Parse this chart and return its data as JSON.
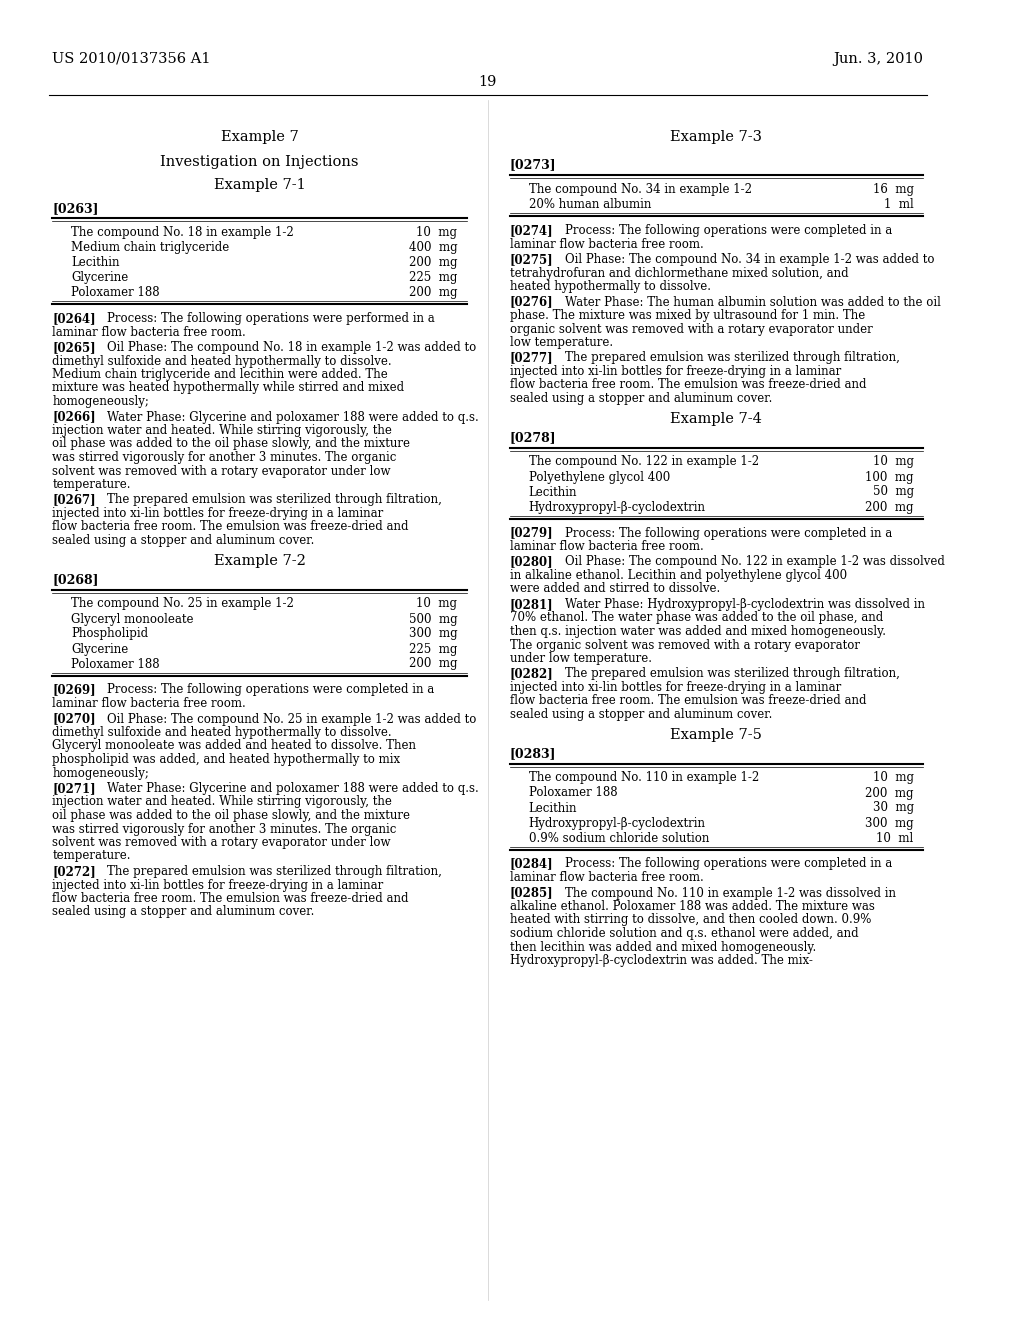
{
  "bg_color": "#ffffff",
  "header_left": "US 2010/0137356 A1",
  "header_right": "Jun. 3, 2010",
  "page_num": "19",
  "left_col": {
    "example_title": "Example 7",
    "subtitle": "Investigation on Injections",
    "sub_example": "Example 7-1",
    "para_263": "[0263]",
    "table1": {
      "rows": [
        [
          "The compound No. 18 in example 1-2",
          "10  mg"
        ],
        [
          "Medium chain triglyceride",
          "400  mg"
        ],
        [
          "Lecithin",
          "200  mg"
        ],
        [
          "Glycerine",
          "225  mg"
        ],
        [
          "Poloxamer 188",
          "200  mg"
        ]
      ]
    },
    "paragraphs": [
      {
        "id": "[0264]",
        "text": "Process: The following operations were performed in a laminar flow bacteria free room."
      },
      {
        "id": "[0265]",
        "text": "Oil Phase: The compound No. 18 in example 1-2 was added to dimethyl sulfoxide and heated hypothermally to dissolve. Medium chain triglyceride and lecithin were added. The mixture was heated hypothermally while stirred and mixed homogeneously;"
      },
      {
        "id": "[0266]",
        "text": "Water Phase: Glycerine and poloxamer 188 were added to q.s. injection water and heated. While stirring vigorously, the oil phase was added to the oil phase slowly, and the mixture was stirred vigorously for another 3 minutes. The organic solvent was removed with a rotary evaporator under low temperature."
      },
      {
        "id": "[0267]",
        "text": "The prepared emulsion was sterilized through filtration, injected into xi-lin bottles for freeze-drying in a laminar flow bacteria free room. The emulsion was freeze-dried and sealed using a stopper and aluminum cover."
      }
    ],
    "sub_example2": "Example 7-2",
    "para_268": "[0268]",
    "table2": {
      "rows": [
        [
          "The compound No. 25 in example 1-2",
          "10  mg"
        ],
        [
          "Glyceryl monooleate",
          "500  mg"
        ],
        [
          "Phospholipid",
          "300  mg"
        ],
        [
          "Glycerine",
          "225  mg"
        ],
        [
          "Poloxamer 188",
          "200  mg"
        ]
      ]
    },
    "paragraphs2": [
      {
        "id": "[0269]",
        "text": "Process: The following operations were completed in a laminar flow bacteria free room."
      },
      {
        "id": "[0270]",
        "text": "Oil Phase: The compound No. 25 in example 1-2 was added to dimethyl sulfoxide and heated hypothermally to dissolve. Glyceryl monooleate was added and heated to dissolve. Then phospholipid was added, and heated hypothermally to mix homogeneously;"
      },
      {
        "id": "[0271]",
        "text": "Water Phase: Glycerine and poloxamer 188 were added to q.s. injection water and heated. While stirring vigorously, the oil phase was added to the oil phase slowly, and the mixture was stirred vigorously for another 3 minutes. The organic solvent was removed with a rotary evaporator under low temperature."
      },
      {
        "id": "[0272]",
        "text": "The prepared emulsion was sterilized through filtration, injected into xi-lin bottles for freeze-drying in a laminar flow bacteria free room. The emulsion was freeze-dried and sealed using a stopper and aluminum cover."
      }
    ]
  },
  "right_col": {
    "sub_example": "Example 7-3",
    "para_273": "[0273]",
    "table3": {
      "rows": [
        [
          "The compound No. 34 in example 1-2",
          "16  mg"
        ],
        [
          "20% human albumin",
          "1  ml"
        ]
      ]
    },
    "paragraphs3": [
      {
        "id": "[0274]",
        "text": "Process: The following operations were completed in a laminar flow bacteria free room."
      },
      {
        "id": "[0275]",
        "text": "Oil Phase: The compound No. 34 in example 1-2 was added to tetrahydrofuran and dichlormethane mixed solution, and heated hypothermally to dissolve."
      },
      {
        "id": "[0276]",
        "text": "Water Phase: The human albumin solution was added to the oil phase. The mixture was mixed by ultrasound for 1 min. The organic solvent was removed with a rotary evaporator under low temperature."
      },
      {
        "id": "[0277]",
        "text": "The prepared emulsion was sterilized through filtration, injected into xi-lin bottles for freeze-drying in a laminar flow bacteria free room. The emulsion was freeze-dried and sealed using a stopper and aluminum cover."
      }
    ],
    "sub_example2": "Example 7-4",
    "para_278": "[0278]",
    "table4": {
      "rows": [
        [
          "The compound No. 122 in example 1-2",
          "10  mg"
        ],
        [
          "Polyethylene glycol 400",
          "100  mg"
        ],
        [
          "Lecithin",
          "50  mg"
        ],
        [
          "Hydroxypropyl-β-cyclodextrin",
          "200  mg"
        ]
      ]
    },
    "paragraphs4": [
      {
        "id": "[0279]",
        "text": "Process: The following operations were completed in a laminar flow bacteria free room."
      },
      {
        "id": "[0280]",
        "text": "Oil Phase: The compound No. 122 in example 1-2 was dissolved in alkaline ethanol. Lecithin and polyethylene glycol 400 were added and stirred to dissolve."
      },
      {
        "id": "[0281]",
        "text": "Water Phase: Hydroxypropyl-β-cyclodextrin was dissolved in 70% ethanol. The water phase was added to the oil phase, and then q.s. injection water was added and mixed homogeneously. The organic solvent was removed with a rotary evaporator under low temperature."
      },
      {
        "id": "[0282]",
        "text": "The prepared emulsion was sterilized through filtration, injected into xi-lin bottles for freeze-drying in a laminar flow bacteria free room. The emulsion was freeze-dried and sealed using a stopper and aluminum cover."
      }
    ],
    "sub_example3": "Example 7-5",
    "para_283": "[0283]",
    "table5": {
      "rows": [
        [
          "The compound No. 110 in example 1-2",
          "10  mg"
        ],
        [
          "Poloxamer 188",
          "200  mg"
        ],
        [
          "Lecithin",
          "30  mg"
        ],
        [
          "Hydroxypropyl-β-cyclodextrin",
          "300  mg"
        ],
        [
          "0.9% sodium chloride solution",
          "10  ml"
        ]
      ]
    },
    "paragraphs5": [
      {
        "id": "[0284]",
        "text": "Process: The following operations were completed in a laminar flow bacteria free room."
      },
      {
        "id": "[0285]",
        "text": "The compound No. 110 in example 1-2 was dissolved in alkaline ethanol. Poloxamer 188 was added. The mixture was heated with stirring to dissolve, and then cooled down. 0.9% sodium chloride solution and q.s. ethanol were added, and then lecithin was added and mixed homogeneously. Hydroxypropyl-β-cyclodextrin was added. The mix-"
      }
    ]
  }
}
